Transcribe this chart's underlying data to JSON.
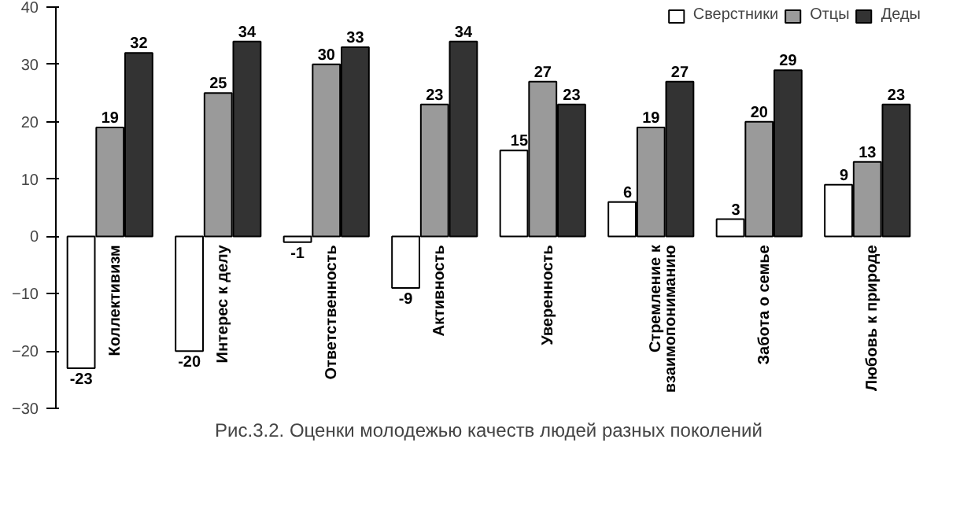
{
  "chart_data": {
    "type": "bar",
    "title": "Рис.3.2. Оценки молодежью качеств людей разных поколений",
    "categories": [
      "Коллективизм",
      "Интерес к делу",
      "Ответственность",
      "Активность",
      "Уверенность",
      "Стремление к\nвзаимопониманию",
      "Забота о семье",
      "Любовь к природе"
    ],
    "series": [
      {
        "name": "Сверстники",
        "color": "#ffffff",
        "values": [
          -23,
          -20,
          -1,
          -9,
          15,
          6,
          3,
          9
        ]
      },
      {
        "name": "Отцы",
        "color": "#9a9a9a",
        "values": [
          19,
          25,
          30,
          23,
          27,
          19,
          20,
          13
        ]
      },
      {
        "name": "Деды",
        "color": "#333333",
        "values": [
          32,
          34,
          33,
          34,
          23,
          27,
          29,
          23
        ]
      }
    ],
    "ylim": [
      -30,
      40
    ],
    "yticks": [
      -30,
      -20,
      -10,
      0,
      10,
      20,
      30,
      40
    ],
    "data_labels": true,
    "legend": "top right",
    "grid": false
  }
}
